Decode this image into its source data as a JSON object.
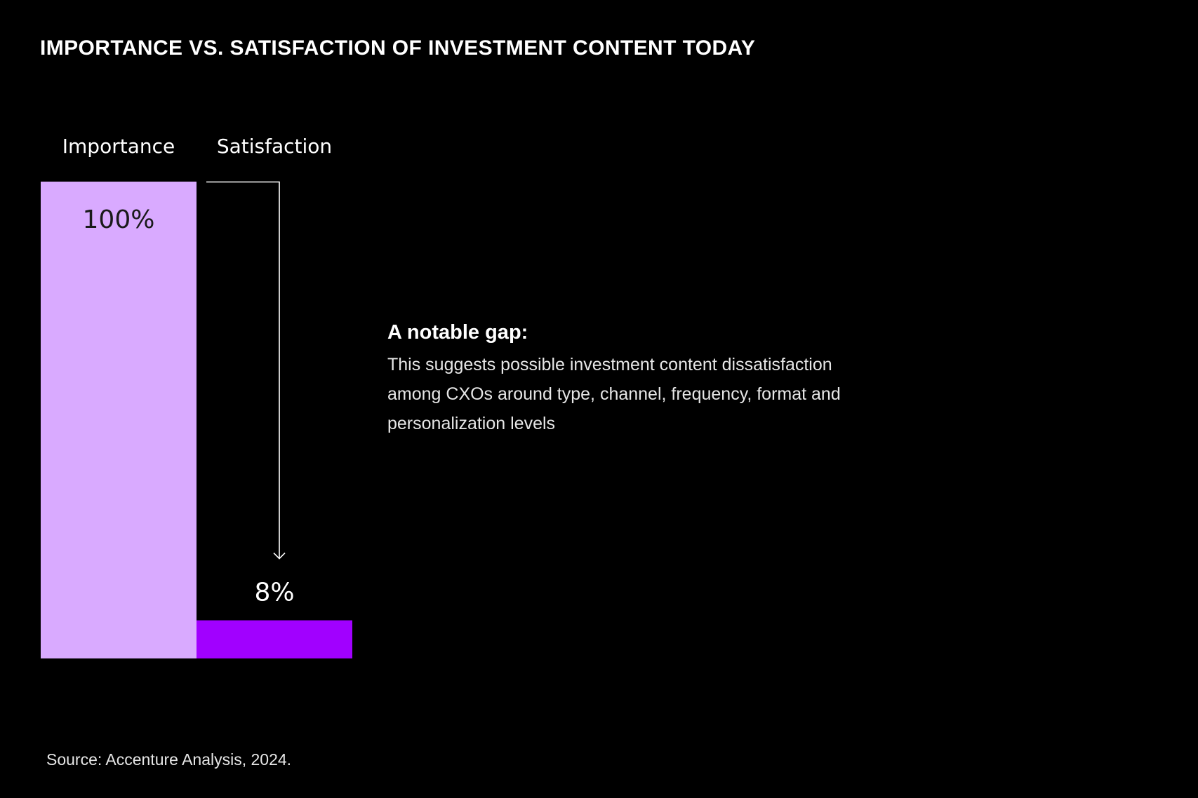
{
  "colors": {
    "background": "#000000",
    "importance_bar": "#d9aaff",
    "satisfaction_bar": "#a100ff",
    "text": "#ffffff",
    "importance_value_text": "#1a1a1a"
  },
  "chart_data": {
    "type": "bar",
    "title": "IMPORTANCE VS. SATISFACTION OF INVESTMENT CONTENT TODAY",
    "categories": [
      "Importance",
      "Satisfaction"
    ],
    "values": [
      100,
      8
    ],
    "value_labels": [
      "100%",
      "8%"
    ],
    "ylim": [
      0,
      100
    ],
    "unit": "%",
    "grid": false,
    "legend": "none",
    "annotation": {
      "type": "arrow",
      "from": "Importance",
      "to": "Satisfaction"
    }
  },
  "note": {
    "heading": "A notable gap:",
    "lines": [
      "This suggests possible investment content dissatisfaction",
      "among CXOs around type, channel, frequency, format and",
      "personalization levels"
    ]
  },
  "source": "Source: Accenture Analysis, 2024."
}
